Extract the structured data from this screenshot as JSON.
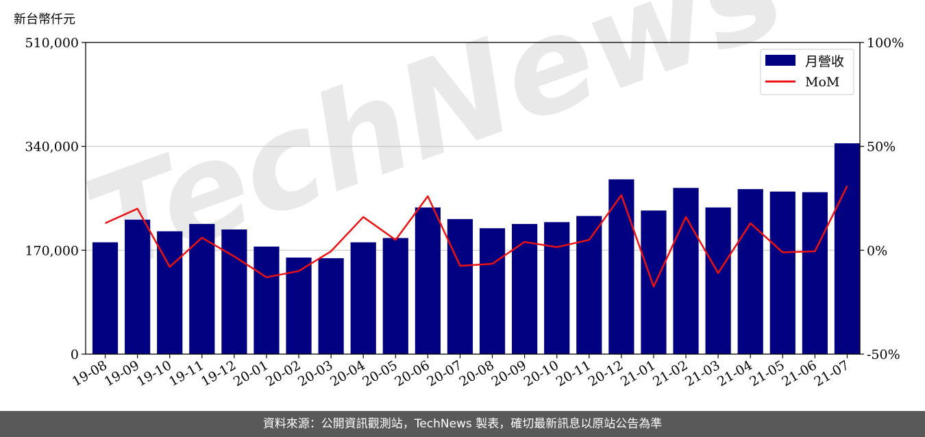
{
  "unit_label": "新台幣仟元",
  "footer_text": "資料來源：公開資訊觀測站，TechNews 製表，確切最新訊息以原站公告為準",
  "watermark": "TechNews",
  "chart_data": {
    "type": "bar+line",
    "categories": [
      "19-08",
      "19-09",
      "19-10",
      "19-11",
      "19-12",
      "20-01",
      "20-02",
      "20-03",
      "20-04",
      "20-05",
      "20-06",
      "20-07",
      "20-08",
      "20-09",
      "20-10",
      "20-11",
      "20-12",
      "21-01",
      "21-02",
      "21-03",
      "21-04",
      "21-05",
      "21-06",
      "21-07"
    ],
    "series": [
      {
        "name": "月營收",
        "type": "bar",
        "axis": "left",
        "color": "#000080",
        "values": [
          183000,
          220000,
          201000,
          213000,
          204000,
          176000,
          158000,
          157000,
          183000,
          190000,
          240000,
          221000,
          206000,
          213000,
          216000,
          226000,
          286000,
          235000,
          272000,
          240000,
          270000,
          266000,
          265000,
          345000
        ]
      },
      {
        "name": "MoM",
        "type": "line",
        "axis": "right",
        "color": "#ee1111",
        "values": [
          13,
          20,
          -8,
          6,
          -3,
          -13,
          -10,
          -0.5,
          16,
          5,
          26,
          -7.5,
          -6.5,
          4,
          1.5,
          5,
          26.5,
          -17.5,
          16,
          -11,
          13,
          -1,
          -0.5,
          31
        ]
      }
    ],
    "y_left": {
      "ticks": [
        "0",
        "170,000",
        "340,000",
        "510,000"
      ],
      "values": [
        0,
        170000,
        340000,
        510000
      ],
      "ylim": [
        0,
        510000
      ]
    },
    "y_right": {
      "ticks": [
        "-50%",
        "0%",
        "50%",
        "100%"
      ],
      "values": [
        -50,
        0,
        50,
        100
      ],
      "ylim": [
        -50,
        100
      ]
    },
    "grid": "horizontal",
    "legend": "top-right"
  }
}
